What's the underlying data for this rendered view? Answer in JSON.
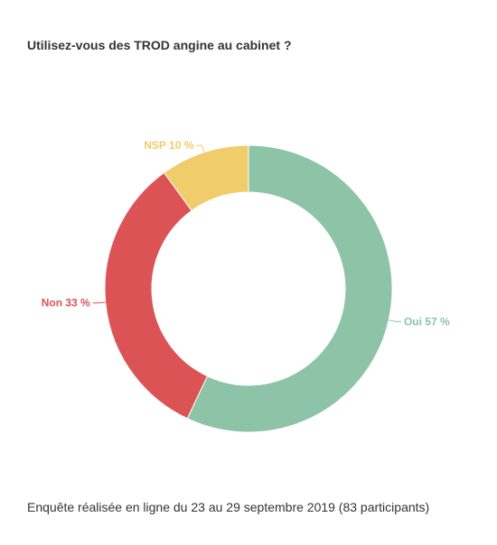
{
  "page": {
    "title": "Utilisez-vous des TROD angine au cabinet ?",
    "footer": "Enquête réalisée en ligne du 23 au 29 septembre 2019 (83 participants)"
  },
  "chart_data": {
    "type": "pie",
    "title": "Utilisez-vous des TROD angine au cabinet ?",
    "donut": true,
    "slices": [
      {
        "label": "Oui",
        "value": 57,
        "display": "Oui 57 %",
        "color": "#8dc3a7"
      },
      {
        "label": "Non",
        "value": 33,
        "display": "Non 33 %",
        "color": "#dc5356"
      },
      {
        "label": "NSP",
        "value": 10,
        "display": "NSP 10 %",
        "color": "#f0cc6a"
      }
    ],
    "legend": "none",
    "labels_position": "outside"
  }
}
